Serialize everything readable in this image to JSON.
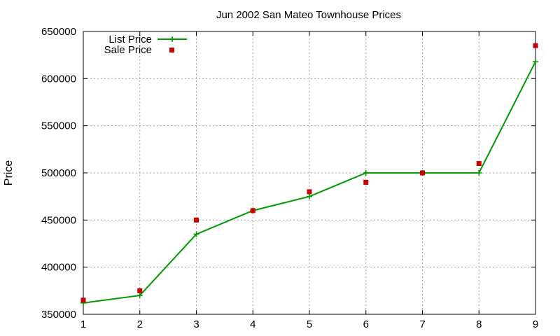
{
  "chart_data": {
    "type": "line",
    "title": "Jun 2002 San Mateo Townhouse Prices",
    "xlabel": "",
    "ylabel": "Price",
    "x": [
      1,
      2,
      3,
      4,
      5,
      6,
      7,
      8,
      9
    ],
    "xlim": [
      1,
      9
    ],
    "ylim": [
      350000,
      650000
    ],
    "x_ticks": [
      "1",
      "2",
      "3",
      "4",
      "5",
      "6",
      "7",
      "8",
      "9"
    ],
    "y_ticks": [
      "350000",
      "400000",
      "450000",
      "500000",
      "550000",
      "600000",
      "650000"
    ],
    "grid": true,
    "legend_position": "top-left",
    "series": [
      {
        "name": "List Price",
        "style": "line-plus",
        "color": "#009900",
        "values": [
          362000,
          370000,
          435000,
          460000,
          475000,
          500000,
          500000,
          500000,
          618000
        ]
      },
      {
        "name": "Sale Price",
        "style": "square",
        "color": "#cc0000",
        "values": [
          365000,
          375000,
          450000,
          460000,
          480000,
          490000,
          500000,
          510000,
          635000
        ]
      }
    ]
  }
}
